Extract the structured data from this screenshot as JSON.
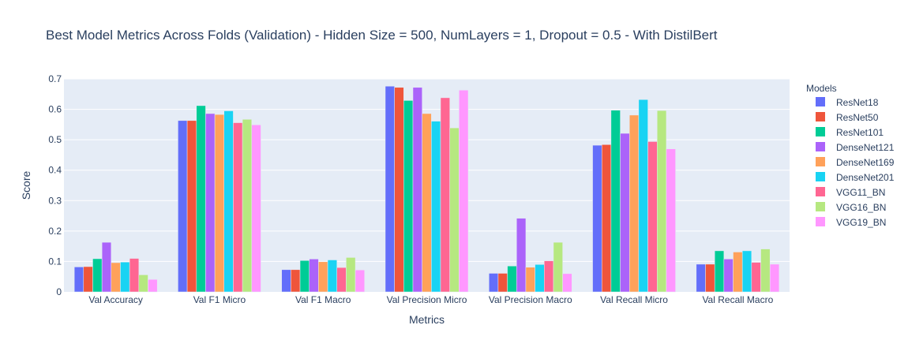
{
  "chart_data": {
    "type": "bar",
    "title": "Best Model Metrics Across Folds (Validation) - Hidden Size = 500, NumLayers = 1, Dropout = 0.5 - With DistilBert",
    "xlabel": "Metrics",
    "ylabel": "Score",
    "ylim": [
      0,
      0.7
    ],
    "yticks": [
      "0",
      "0.1",
      "0.2",
      "0.3",
      "0.4",
      "0.5",
      "0.6",
      "0.7"
    ],
    "legend_title": "Models",
    "legend_position": "right",
    "categories": [
      "Val Accuracy",
      "Val F1 Micro",
      "Val F1 Macro",
      "Val Precision Micro",
      "Val Precision Macro",
      "Val Recall Micro",
      "Val Recall Macro"
    ],
    "series": [
      {
        "name": "ResNet18",
        "color": "#636efa",
        "values": [
          0.082,
          0.563,
          0.073,
          0.676,
          0.061,
          0.482,
          0.091
        ]
      },
      {
        "name": "ResNet50",
        "color": "#ef553b",
        "values": [
          0.083,
          0.563,
          0.073,
          0.672,
          0.061,
          0.484,
          0.091
        ]
      },
      {
        "name": "ResNet101",
        "color": "#00cc96",
        "values": [
          0.109,
          0.612,
          0.103,
          0.629,
          0.085,
          0.597,
          0.135
        ]
      },
      {
        "name": "DenseNet121",
        "color": "#ab63fa",
        "values": [
          0.163,
          0.586,
          0.108,
          0.672,
          0.242,
          0.521,
          0.108
        ]
      },
      {
        "name": "DenseNet169",
        "color": "#ffa15a",
        "values": [
          0.096,
          0.583,
          0.099,
          0.586,
          0.081,
          0.581,
          0.131
        ]
      },
      {
        "name": "DenseNet201",
        "color": "#19d3f3",
        "values": [
          0.098,
          0.595,
          0.105,
          0.561,
          0.09,
          0.632,
          0.135
        ]
      },
      {
        "name": "VGG11_BN",
        "color": "#ff6692",
        "values": [
          0.11,
          0.556,
          0.08,
          0.638,
          0.102,
          0.494,
          0.097
        ]
      },
      {
        "name": "VGG16_BN",
        "color": "#b6e880",
        "values": [
          0.056,
          0.567,
          0.113,
          0.539,
          0.163,
          0.596,
          0.141
        ]
      },
      {
        "name": "VGG19_BN",
        "color": "#ff97ff",
        "values": [
          0.041,
          0.549,
          0.072,
          0.663,
          0.06,
          0.47,
          0.091
        ]
      }
    ]
  }
}
